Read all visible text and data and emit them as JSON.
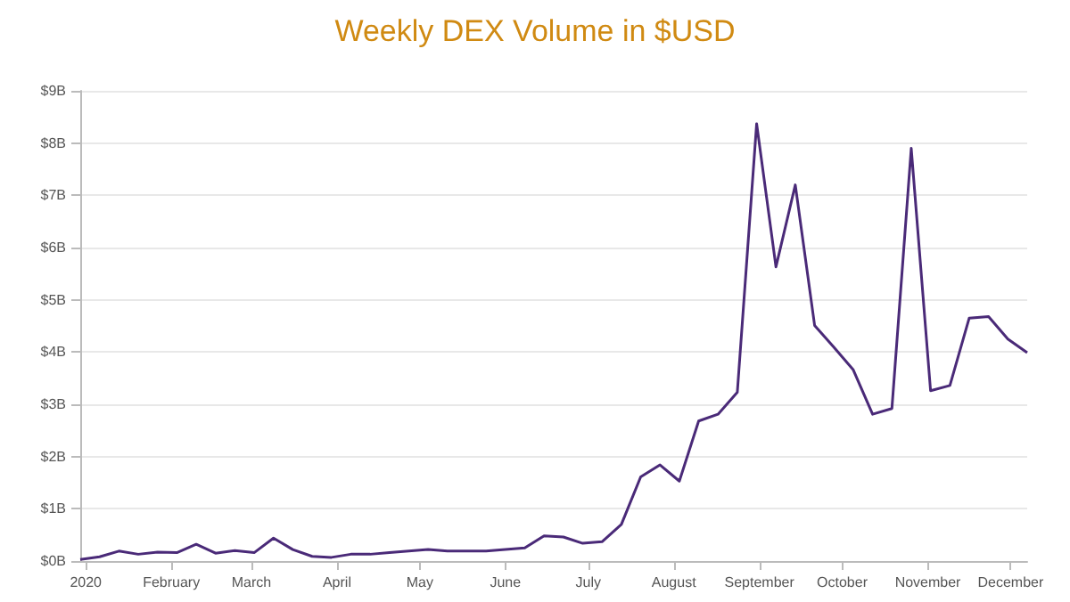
{
  "chart_data": {
    "type": "line",
    "title": "Weekly DEX Volume in $USD",
    "x": [
      "2019-12-30",
      "2020-01-06",
      "2020-01-13",
      "2020-01-20",
      "2020-01-27",
      "2020-02-03",
      "2020-02-10",
      "2020-02-17",
      "2020-02-24",
      "2020-03-02",
      "2020-03-09",
      "2020-03-16",
      "2020-03-23",
      "2020-03-30",
      "2020-04-06",
      "2020-04-13",
      "2020-04-20",
      "2020-04-27",
      "2020-05-04",
      "2020-05-11",
      "2020-05-18",
      "2020-05-25",
      "2020-06-01",
      "2020-06-08",
      "2020-06-15",
      "2020-06-22",
      "2020-06-29",
      "2020-07-06",
      "2020-07-13",
      "2020-07-20",
      "2020-07-27",
      "2020-08-03",
      "2020-08-10",
      "2020-08-17",
      "2020-08-24",
      "2020-08-31",
      "2020-09-07",
      "2020-09-14",
      "2020-09-21",
      "2020-09-28",
      "2020-10-05",
      "2020-10-12",
      "2020-10-19",
      "2020-10-26",
      "2020-11-02",
      "2020-11-09",
      "2020-11-16",
      "2020-11-23",
      "2020-11-30",
      "2020-12-07"
    ],
    "series": [
      {
        "color": "#4a2a78",
        "values": [
          0.03,
          0.08,
          0.19,
          0.13,
          0.17,
          0.16,
          0.32,
          0.15,
          0.2,
          0.16,
          0.44,
          0.22,
          0.09,
          0.07,
          0.13,
          0.13,
          0.16,
          0.19,
          0.22,
          0.19,
          0.19,
          0.19,
          0.22,
          0.25,
          0.48,
          0.46,
          0.34,
          0.37,
          0.7,
          1.61,
          1.84,
          1.53,
          2.68,
          2.81,
          3.23,
          8.37,
          5.63,
          7.2,
          4.51,
          4.09,
          3.66,
          2.81,
          2.92,
          7.9,
          3.26,
          3.36,
          4.65,
          4.68,
          4.25,
          3.99
        ]
      }
    ],
    "xlim": [
      "2019-12-30",
      "2020-12-07"
    ],
    "xticks": [
      {
        "value": "2020-01-01",
        "label": "2020"
      },
      {
        "value": "2020-02-01",
        "label": "February"
      },
      {
        "value": "2020-03-01",
        "label": "March"
      },
      {
        "value": "2020-04-01",
        "label": "April"
      },
      {
        "value": "2020-05-01",
        "label": "May"
      },
      {
        "value": "2020-06-01",
        "label": "June"
      },
      {
        "value": "2020-07-01",
        "label": "July"
      },
      {
        "value": "2020-08-01",
        "label": "August"
      },
      {
        "value": "2020-09-01",
        "label": "September"
      },
      {
        "value": "2020-10-01",
        "label": "October"
      },
      {
        "value": "2020-11-01",
        "label": "November"
      },
      {
        "value": "2020-12-01",
        "label": "December"
      }
    ],
    "ylim": [
      0,
      9
    ],
    "yticks": [
      {
        "value": 0,
        "label": "$0B"
      },
      {
        "value": 1,
        "label": "$1B"
      },
      {
        "value": 2,
        "label": "$2B"
      },
      {
        "value": 3,
        "label": "$3B"
      },
      {
        "value": 4,
        "label": "$4B"
      },
      {
        "value": 5,
        "label": "$5B"
      },
      {
        "value": 6,
        "label": "$6B"
      },
      {
        "value": 7,
        "label": "$7B"
      },
      {
        "value": 8,
        "label": "$8B"
      },
      {
        "value": 9,
        "label": "$9B"
      }
    ],
    "grid": "y",
    "marker": "none",
    "line_style": "solid"
  }
}
